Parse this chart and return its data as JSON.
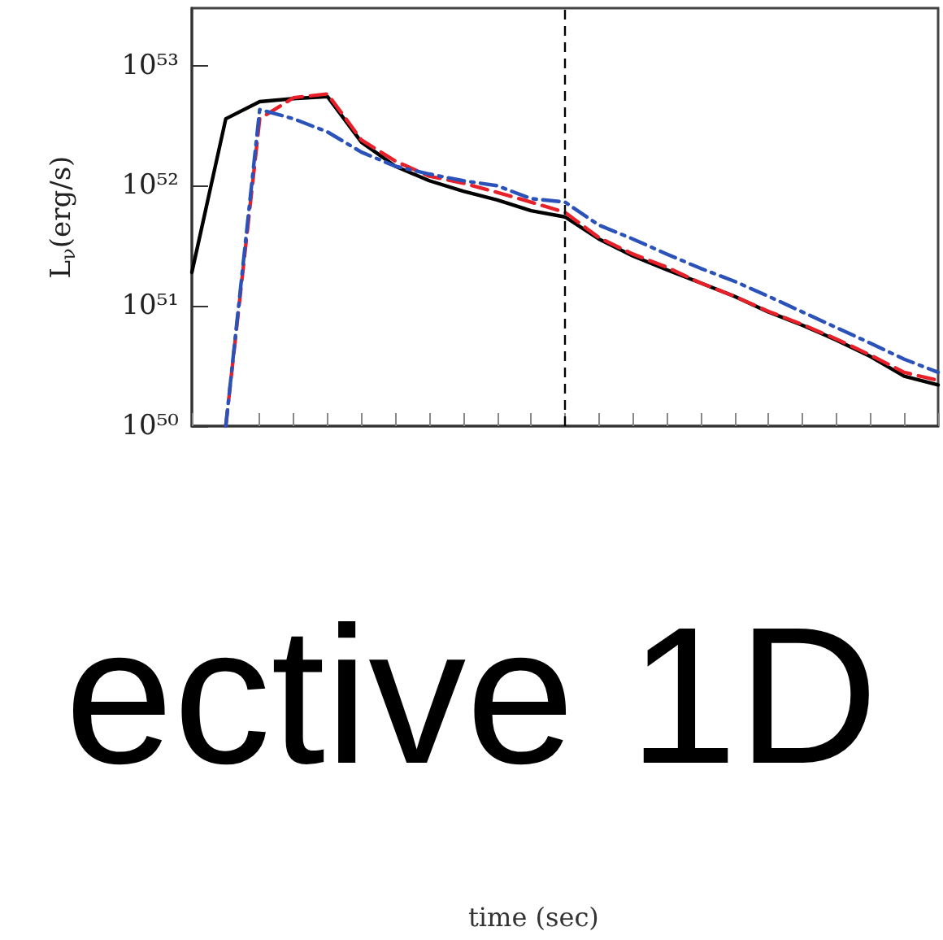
{
  "chart_data": {
    "type": "line",
    "ylabel": "L$_{ν}$(erg/s)",
    "annotations": [
      "ective 1D",
      "time (sec)"
    ],
    "categories": [
      null,
      null,
      null,
      null,
      null,
      null,
      null,
      null,
      null,
      null,
      null,
      null,
      null,
      null,
      null,
      null,
      null,
      null,
      null,
      null,
      null,
      null,
      null
    ],
    "series": [
      {
        "color": "#000000",
        "line_style": "solid",
        "values": [
          1.9e+51,
          3.6e+52,
          5e+52,
          5.3e+52,
          5.5e+52,
          2.3e+52,
          1.45e+52,
          1.1e+52,
          9e+51,
          7.6e+51,
          6.2e+51,
          5.5e+51,
          3.6e+51,
          2.6e+51,
          2e+51,
          1.55e+51,
          1.2e+51,
          8.9e+50,
          6.9e+50,
          5.2e+50,
          3.8e+50,
          2.6e+50,
          2.2e+50
        ]
      },
      {
        "color": "#e8202a",
        "line_style": "dashed",
        "values": [
          null,
          1e+50,
          3.6e+52,
          5.4e+52,
          5.8e+52,
          2.4e+52,
          1.6e+52,
          1.2e+52,
          1.05e+52,
          8.8e+51,
          7.3e+51,
          6e+51,
          3.7e+51,
          2.7e+51,
          2.1e+51,
          1.55e+51,
          1.2e+51,
          9e+50,
          7e+50,
          5.3e+50,
          3.9e+50,
          2.8e+50,
          2.4e+50
        ]
      },
      {
        "color": "#2a52b8",
        "line_style": "dotted",
        "values": [
          null,
          1e+50,
          4.3e+52,
          3.6e+52,
          2.8e+52,
          1.9e+52,
          1.45e+52,
          1.25e+52,
          1.1e+52,
          1e+52,
          7.8e+51,
          7.3e+51,
          4.7e+51,
          3.6e+51,
          2.7e+51,
          2.05e+51,
          1.6e+51,
          1.2e+51,
          8.9e+50,
          6.6e+50,
          4.9e+50,
          3.6e+50,
          2.8e+50
        ]
      }
    ],
    "log": "y",
    "ylim": [
      1e+50,
      3e+53
    ],
    "yticks": [
      {
        "value": 1e+50,
        "label": "10⁵⁰"
      },
      {
        "value": 1e+51,
        "label": "10⁵¹"
      },
      {
        "value": 1e+52,
        "label": "10⁵²"
      },
      {
        "value": 1e+53,
        "label": "10⁵³"
      }
    ],
    "grid": false,
    "marker": "none"
  }
}
